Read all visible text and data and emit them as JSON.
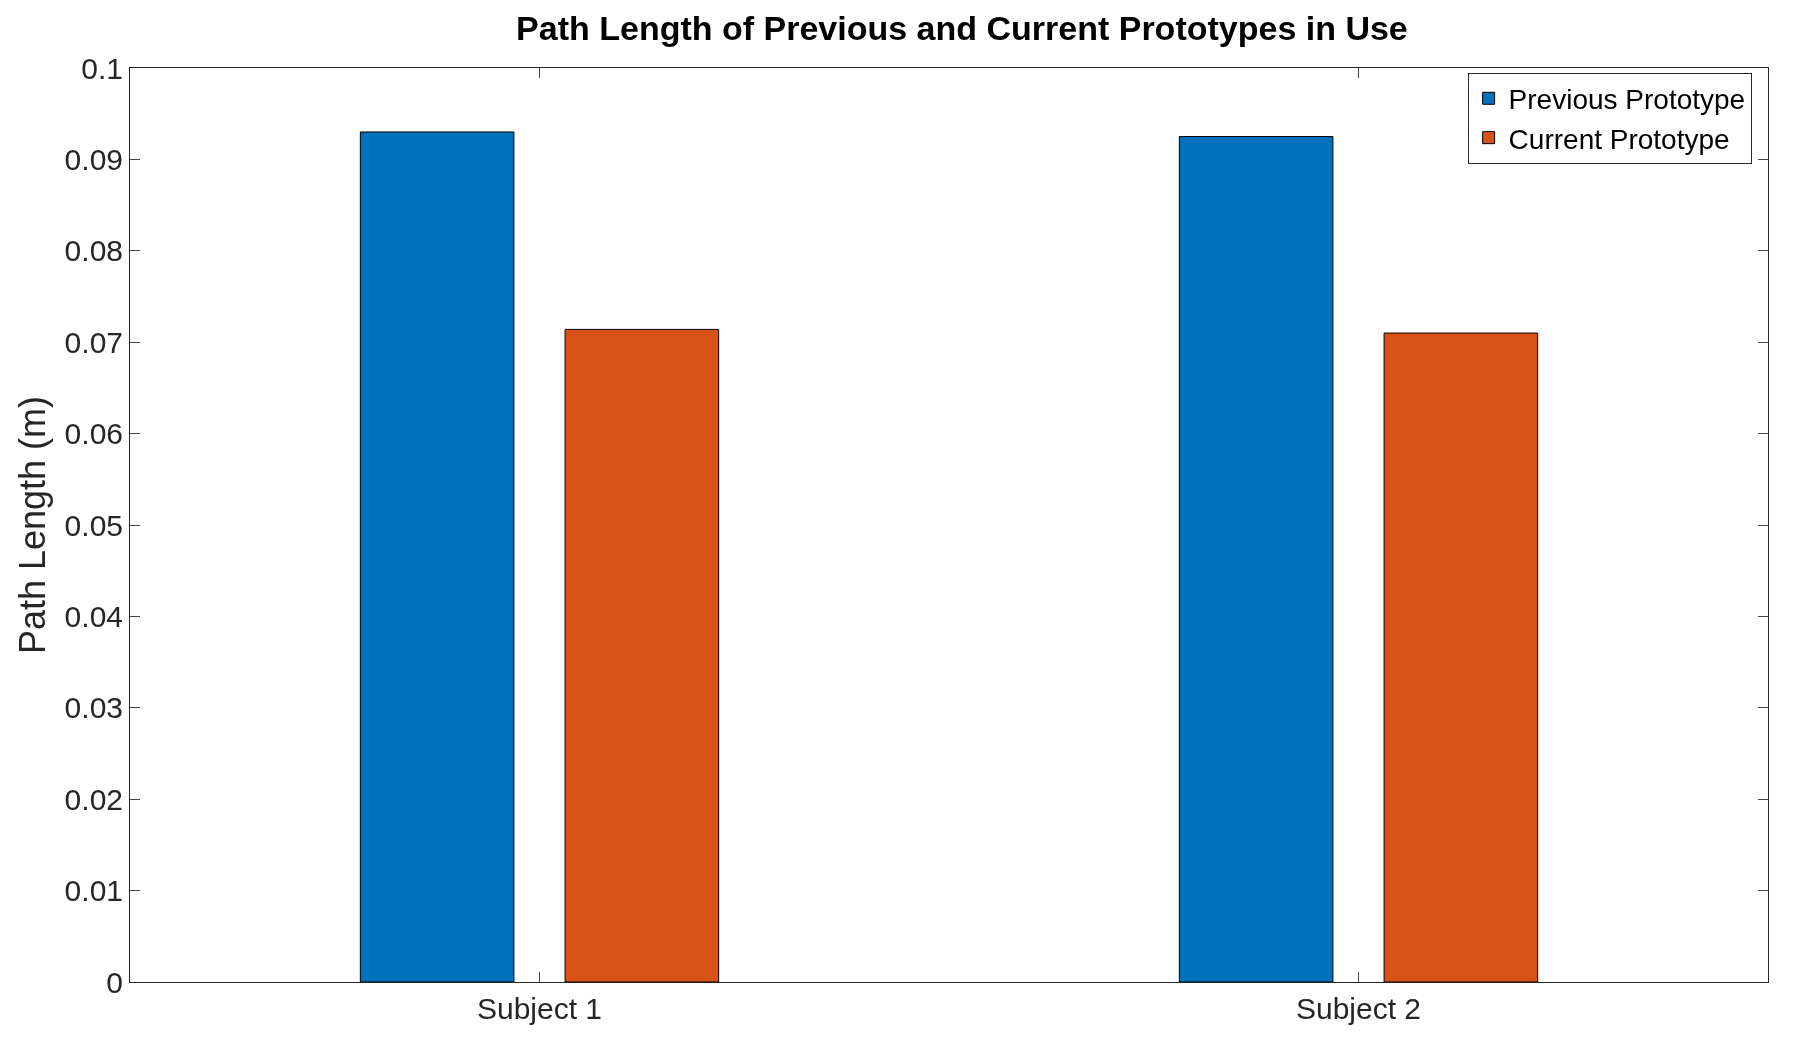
{
  "chart_data": {
    "type": "bar",
    "title": "Path Length of Previous and Current Prototypes in Use",
    "ylabel": "Path Length (m)",
    "categories": [
      "Subject 1",
      "Subject 2"
    ],
    "series": [
      {
        "name": "Previous Prototype",
        "color": "#0072bd",
        "values": [
          0.093,
          0.0925
        ]
      },
      {
        "name": "Current Prototype",
        "color": "#d95319",
        "values": [
          0.0714,
          0.071
        ]
      }
    ],
    "ylim": [
      0,
      0.1
    ],
    "yticks": [
      0,
      0.01,
      0.02,
      0.03,
      0.04,
      0.05,
      0.06,
      0.07,
      0.08,
      0.09,
      0.1
    ],
    "legend": "top right"
  }
}
